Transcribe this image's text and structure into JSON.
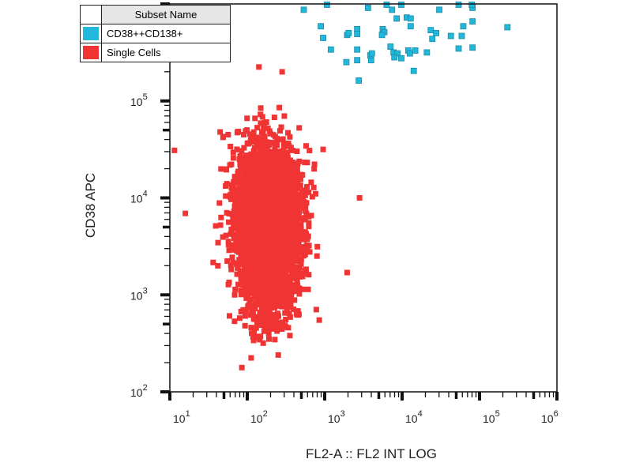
{
  "chart_data": {
    "type": "scatter",
    "title": "",
    "xlabel": "FL2-A :: FL2 INT LOG",
    "ylabel": "CD38 APC",
    "xscale": "log",
    "yscale": "log",
    "xlim_log10": [
      1,
      6
    ],
    "ylim_log10": [
      2,
      6
    ],
    "x_tick_labels": [
      "10",
      "10",
      "10",
      "10",
      "10",
      "10"
    ],
    "x_tick_exponents": [
      "1",
      "2",
      "3",
      "4",
      "5",
      "6"
    ],
    "y_tick_labels": [
      "10",
      "10",
      "10",
      "10"
    ],
    "y_tick_exponents": [
      "2",
      "3",
      "4",
      "5"
    ],
    "grid": false,
    "legend": {
      "placement": "top-left",
      "header": "Subset Name",
      "entries": [
        {
          "name": "CD38++CD138+",
          "color": "#22b8dc"
        },
        {
          "name": "Single Cells",
          "color": "#f03434"
        }
      ]
    },
    "series": [
      {
        "name": "Single Cells",
        "color": "#f03434",
        "population": {
          "count": 4000,
          "center_log10": [
            2.27,
            3.68
          ],
          "sd_log10": [
            0.2,
            0.42
          ],
          "clip_log10_y": [
            2.5,
            5.0
          ]
        },
        "outliers_log10": [
          [
            1.06,
            4.49
          ],
          [
            1.2,
            3.84
          ],
          [
            1.74,
            5.77
          ],
          [
            3.45,
            4.0
          ],
          [
            3.29,
            3.23
          ],
          [
            2.93,
            2.74
          ],
          [
            1.93,
            2.25
          ],
          [
            1.62,
            3.3
          ],
          [
            2.15,
            5.35
          ],
          [
            2.45,
            5.3
          ],
          [
            2.9,
            3.4
          ],
          [
            2.98,
            4.5
          ],
          [
            1.65,
            4.68
          ],
          [
            2.05,
            2.35
          ],
          [
            2.4,
            2.38
          ]
        ]
      },
      {
        "name": "CD38++CD138+",
        "color": "#22b8dc",
        "points_log10": [
          [
            2.73,
            5.94
          ],
          [
            3.03,
            6.0
          ],
          [
            3.56,
            5.96
          ],
          [
            3.87,
            5.94
          ],
          [
            3.8,
            6.0
          ],
          [
            3.99,
            6.0
          ],
          [
            4.48,
            5.94
          ],
          [
            4.73,
            6.0
          ],
          [
            4.91,
            5.96
          ],
          [
            4.9,
            6.0
          ],
          [
            3.93,
            5.85
          ],
          [
            4.06,
            5.86
          ],
          [
            4.11,
            5.85
          ],
          [
            4.11,
            5.77
          ],
          [
            2.95,
            5.77
          ],
          [
            2.98,
            5.65
          ],
          [
            3.08,
            5.53
          ],
          [
            3.29,
            5.68
          ],
          [
            3.31,
            5.7
          ],
          [
            3.42,
            5.74
          ],
          [
            3.42,
            5.69
          ],
          [
            3.75,
            5.74
          ],
          [
            3.77,
            5.71
          ],
          [
            3.74,
            5.68
          ],
          [
            4.37,
            5.73
          ],
          [
            4.44,
            5.7
          ],
          [
            4.39,
            5.64
          ],
          [
            4.63,
            5.67
          ],
          [
            4.77,
            5.67
          ],
          [
            4.91,
            5.82
          ],
          [
            4.79,
            5.77
          ],
          [
            5.36,
            5.76
          ],
          [
            3.42,
            5.53
          ],
          [
            3.42,
            5.42
          ],
          [
            3.6,
            5.42
          ],
          [
            3.59,
            5.47
          ],
          [
            3.61,
            5.49
          ],
          [
            3.89,
            5.5
          ],
          [
            3.94,
            5.49
          ],
          [
            3.9,
            5.45
          ],
          [
            4.08,
            5.52
          ],
          [
            4.1,
            5.49
          ],
          [
            4.17,
            5.52
          ],
          [
            4.32,
            5.5
          ],
          [
            4.73,
            5.54
          ],
          [
            4.91,
            5.55
          ],
          [
            3.28,
            5.4
          ],
          [
            3.99,
            5.44
          ],
          [
            4.15,
            5.31
          ],
          [
            3.44,
            5.21
          ],
          [
            3.85,
            5.56
          ]
        ]
      }
    ]
  }
}
